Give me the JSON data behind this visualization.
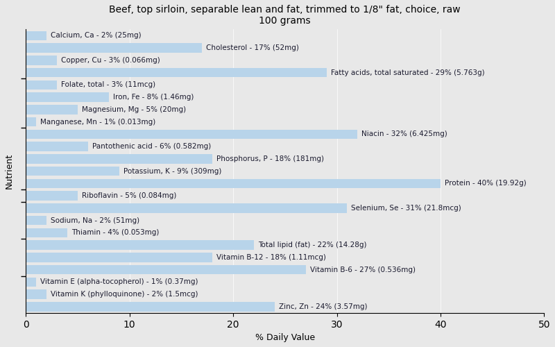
{
  "title": "Beef, top sirloin, separable lean and fat, trimmed to 1/8\" fat, choice, raw\n100 grams",
  "xlabel": "% Daily Value",
  "ylabel": "Nutrient",
  "xlim": [
    0,
    50
  ],
  "xticks": [
    0,
    10,
    20,
    30,
    40,
    50
  ],
  "bar_color": "#b8d4ea",
  "background_color": "#e8e8e8",
  "plot_bg_color": "#e8e8e8",
  "bar_height": 0.75,
  "label_fontsize": 7.5,
  "nutrients": [
    {
      "label": "Calcium, Ca - 2% (25mg)",
      "value": 2
    },
    {
      "label": "Cholesterol - 17% (52mg)",
      "value": 17
    },
    {
      "label": "Copper, Cu - 3% (0.066mg)",
      "value": 3
    },
    {
      "label": "Fatty acids, total saturated - 29% (5.763g)",
      "value": 29
    },
    {
      "label": "Folate, total - 3% (11mcg)",
      "value": 3
    },
    {
      "label": "Iron, Fe - 8% (1.46mg)",
      "value": 8
    },
    {
      "label": "Magnesium, Mg - 5% (20mg)",
      "value": 5
    },
    {
      "label": "Manganese, Mn - 1% (0.013mg)",
      "value": 1
    },
    {
      "label": "Niacin - 32% (6.425mg)",
      "value": 32
    },
    {
      "label": "Pantothenic acid - 6% (0.582mg)",
      "value": 6
    },
    {
      "label": "Phosphorus, P - 18% (181mg)",
      "value": 18
    },
    {
      "label": "Potassium, K - 9% (309mg)",
      "value": 9
    },
    {
      "label": "Protein - 40% (19.92g)",
      "value": 40
    },
    {
      "label": "Riboflavin - 5% (0.084mg)",
      "value": 5
    },
    {
      "label": "Selenium, Se - 31% (21.8mcg)",
      "value": 31
    },
    {
      "label": "Sodium, Na - 2% (51mg)",
      "value": 2
    },
    {
      "label": "Thiamin - 4% (0.053mg)",
      "value": 4
    },
    {
      "label": "Total lipid (fat) - 22% (14.28g)",
      "value": 22
    },
    {
      "label": "Vitamin B-12 - 18% (1.11mcg)",
      "value": 18
    },
    {
      "label": "Vitamin B-6 - 27% (0.536mg)",
      "value": 27
    },
    {
      "label": "Vitamin E (alpha-tocopherol) - 1% (0.37mg)",
      "value": 1
    },
    {
      "label": "Vitamin K (phylloquinone) - 2% (1.5mcg)",
      "value": 2
    },
    {
      "label": "Zinc, Zn - 24% (3.57mg)",
      "value": 24
    }
  ],
  "title_fontsize": 10,
  "axis_label_fontsize": 9
}
